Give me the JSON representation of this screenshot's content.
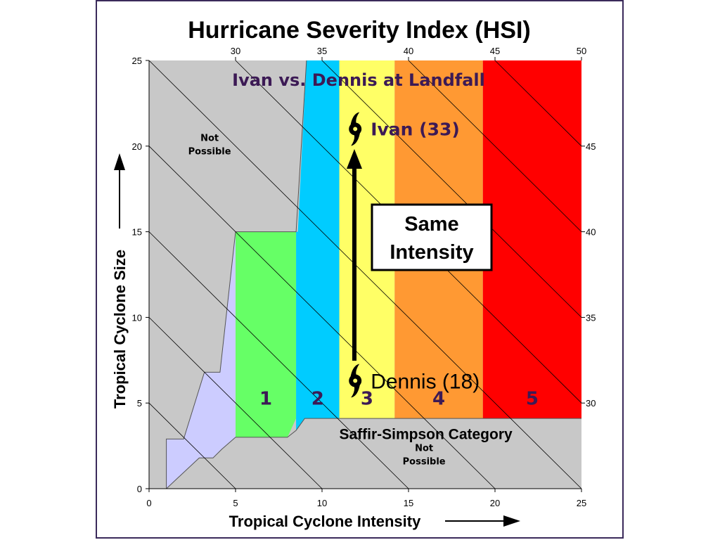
{
  "chart_data": {
    "type": "area",
    "title": "Hurricane Severity Index (HSI)",
    "subtitle": "Ivan vs. Dennis at Landfall",
    "xlabel": "Tropical Cyclone Intensity",
    "ylabel": "Tropical Cyclone Size",
    "xlim": [
      0,
      25
    ],
    "ylim": [
      0,
      25
    ],
    "x_ticks": [
      0,
      5,
      10,
      15,
      20,
      25
    ],
    "y_ticks": [
      0,
      5,
      10,
      15,
      20,
      25
    ],
    "top_ticks": [
      30,
      35,
      40,
      45,
      50
    ],
    "right_ticks": [
      30,
      35,
      40,
      45
    ],
    "isolines": [
      5,
      10,
      15,
      20,
      25,
      30,
      35,
      40,
      45,
      50
    ],
    "not_possible_labels": [
      {
        "lines": [
          "Not",
          "Possible"
        ],
        "x": 3.5,
        "y": 20.3
      },
      {
        "lines": [
          "Not",
          "Possible"
        ],
        "x": 15.9,
        "y": 2.2
      }
    ],
    "categories_band_label": "Saffir-Simpson Category",
    "categories": [
      {
        "label": "1",
        "x_start": 5.0,
        "x_end": 8.5,
        "color": "#66ff66"
      },
      {
        "label": "2",
        "x_start": 8.5,
        "x_end": 11.0,
        "color": "#00ccff"
      },
      {
        "label": "3",
        "x_start": 11.0,
        "x_end": 14.2,
        "color": "#ffff66"
      },
      {
        "label": "4",
        "x_start": 14.2,
        "x_end": 19.3,
        "color": "#ff9933"
      },
      {
        "label": "5",
        "x_start": 19.3,
        "x_end": 25.0,
        "color": "#ff0000"
      }
    ],
    "storms": [
      {
        "name": "Ivan (33)",
        "x": 12.0,
        "y": 21.0
      },
      {
        "name": "Dennis (18)",
        "x": 12.0,
        "y": 6.3
      }
    ],
    "annotation": {
      "lines": [
        "Same",
        "Intensity"
      ]
    },
    "colors": {
      "not_possible": "#c8c8c8",
      "tropical_storm": "#ccccff",
      "storm_text": "#3c1a55",
      "frame": "#3a2a5a"
    }
  }
}
